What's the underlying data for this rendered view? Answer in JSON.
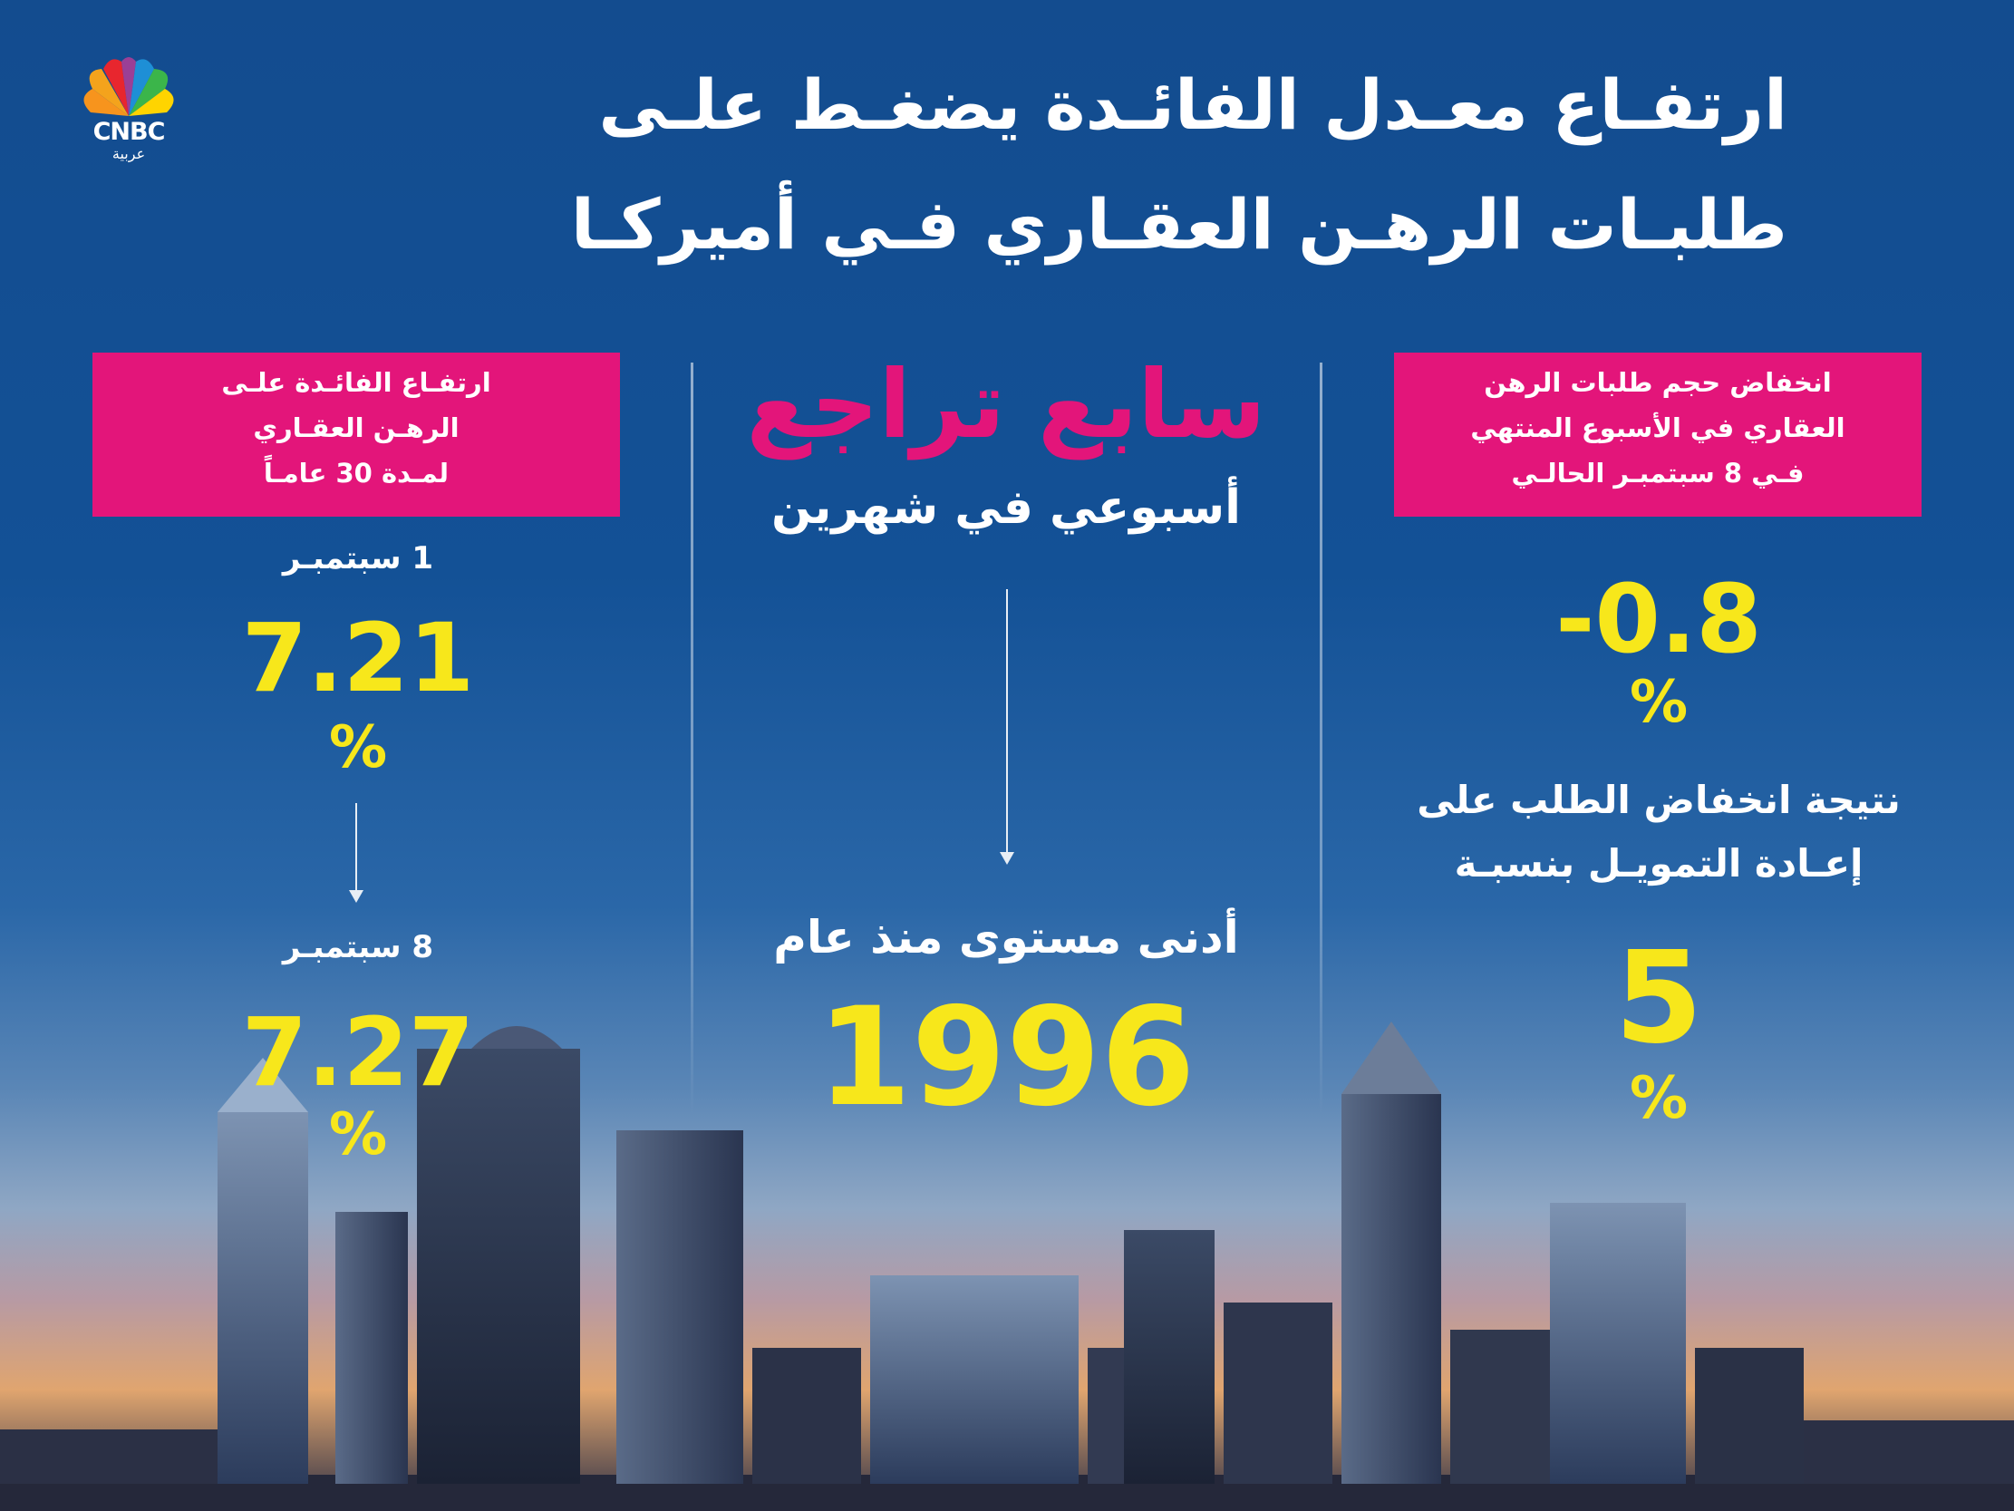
{
  "brand": {
    "name": "CNBC",
    "sub": "عربية"
  },
  "title": {
    "line1": "ارتفـاع معـدل الفائـدة يضغـط علـى",
    "line2": "طلبـات الرهـن العقـاري فـي أميركـا"
  },
  "left": {
    "box_line1": "ارتفـاع الفائـدة علـى",
    "box_line2": "الرهـن العقـاري",
    "box_line3": "لمـدة 30 عامـاً",
    "date1": "1 سبتمبـر",
    "value1": "7.21",
    "unit1": "%",
    "date2": "8 سبتمبـر",
    "value2": "7.27",
    "unit2": "%"
  },
  "center": {
    "headline": "سابع تراجع",
    "sub": "أسبوعي في شهرين",
    "low_label": "أدنى مستوى منذ عام",
    "year": "1996"
  },
  "right": {
    "box_line1": "انخفاض حجم طلبات الرهن",
    "box_line2": "العقاري في الأسبوع المنتهي",
    "box_line3": "فـي 8 سبتمبـر الحالـي",
    "value1": "0.8-",
    "unit1": "%",
    "note_line1": "نتيجة انخفاض الطلب على",
    "note_line2": "إعـادة التمويـل بنسبـة",
    "value2": "5",
    "unit2": "%"
  },
  "colors": {
    "accent_pink": "#e3157a",
    "highlight_yellow": "#f7e71b",
    "background_blue": "#135196"
  }
}
